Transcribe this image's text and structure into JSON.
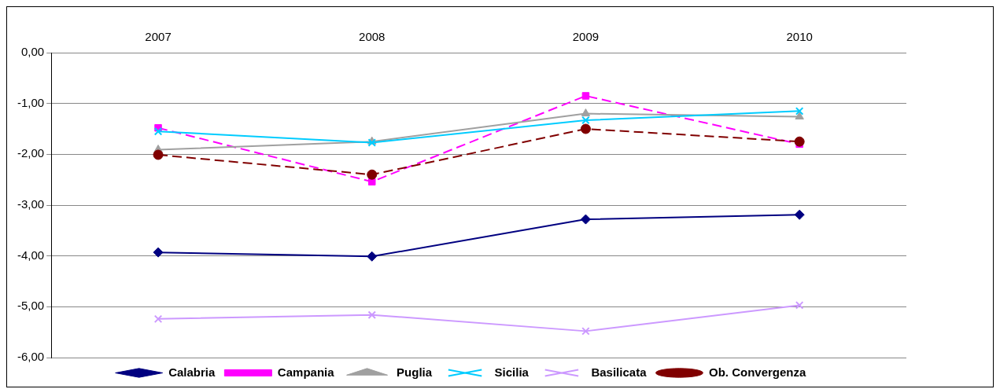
{
  "chart_data": {
    "type": "line",
    "categories": [
      "2007",
      "2008",
      "2009",
      "2010"
    ],
    "series": [
      {
        "name": "Calabria",
        "color": "#000080",
        "marker": "diamond",
        "line_style": "solid",
        "values": [
          -3.93,
          -4.01,
          -3.28,
          -3.19
        ]
      },
      {
        "name": "Campania",
        "color": "#ff00ff",
        "marker": "square",
        "line_style": "dashed",
        "values": [
          -1.48,
          -2.54,
          -0.85,
          -1.8
        ]
      },
      {
        "name": "Puglia",
        "color": "#a0a0a0",
        "marker": "triangle",
        "line_style": "solid",
        "values": [
          -1.91,
          -1.75,
          -1.2,
          -1.26
        ]
      },
      {
        "name": "Sicilia",
        "color": "#00ccff",
        "marker": "cross",
        "line_style": "solid",
        "values": [
          -1.55,
          -1.77,
          -1.33,
          -1.15
        ]
      },
      {
        "name": "Basilicata",
        "color": "#cc99ff",
        "marker": "cross",
        "line_style": "solid",
        "values": [
          -5.24,
          -5.16,
          -5.48,
          -4.97
        ]
      },
      {
        "name": "Ob. Convergenza",
        "color": "#800000",
        "marker": "circle",
        "line_style": "dashed",
        "values": [
          -2.01,
          -2.4,
          -1.5,
          -1.75
        ]
      }
    ],
    "ylim": [
      -6,
      0
    ],
    "yticks": [
      {
        "value": 0,
        "label": "0,00"
      },
      {
        "value": -1,
        "label": "-1,00"
      },
      {
        "value": -2,
        "label": "-2,00"
      },
      {
        "value": -3,
        "label": "-3,00"
      },
      {
        "value": -4,
        "label": "-4,00"
      },
      {
        "value": -5,
        "label": "-5,00"
      },
      {
        "value": -6,
        "label": "-6,00"
      }
    ],
    "grid": "y",
    "legend": "bottom"
  }
}
